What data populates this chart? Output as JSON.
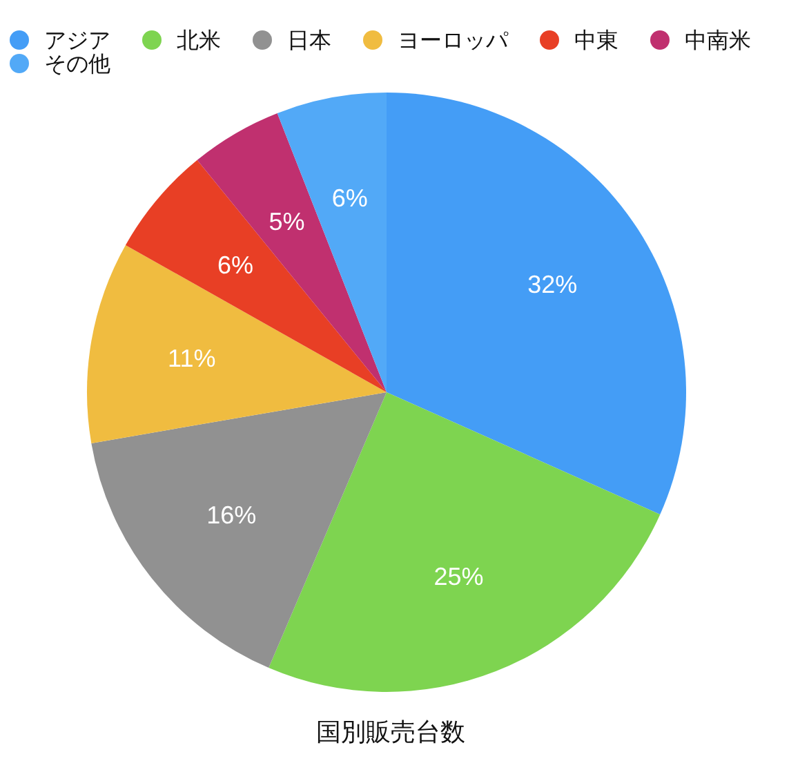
{
  "chart_data": {
    "type": "pie",
    "title": "国別販売台数",
    "categories": [
      "アジア",
      "北米",
      "日本",
      "ヨーロッパ",
      "中東",
      "中南米",
      "その他"
    ],
    "values": [
      32,
      25,
      16,
      11,
      6,
      5,
      6
    ],
    "value_labels": [
      "32%",
      "25%",
      "16%",
      "11%",
      "6%",
      "5%",
      "6%"
    ],
    "colors": [
      "#449df6",
      "#7ed450",
      "#919191",
      "#f0bc40",
      "#e83f25",
      "#c0306f",
      "#52a9f7"
    ],
    "legend": "top left"
  }
}
